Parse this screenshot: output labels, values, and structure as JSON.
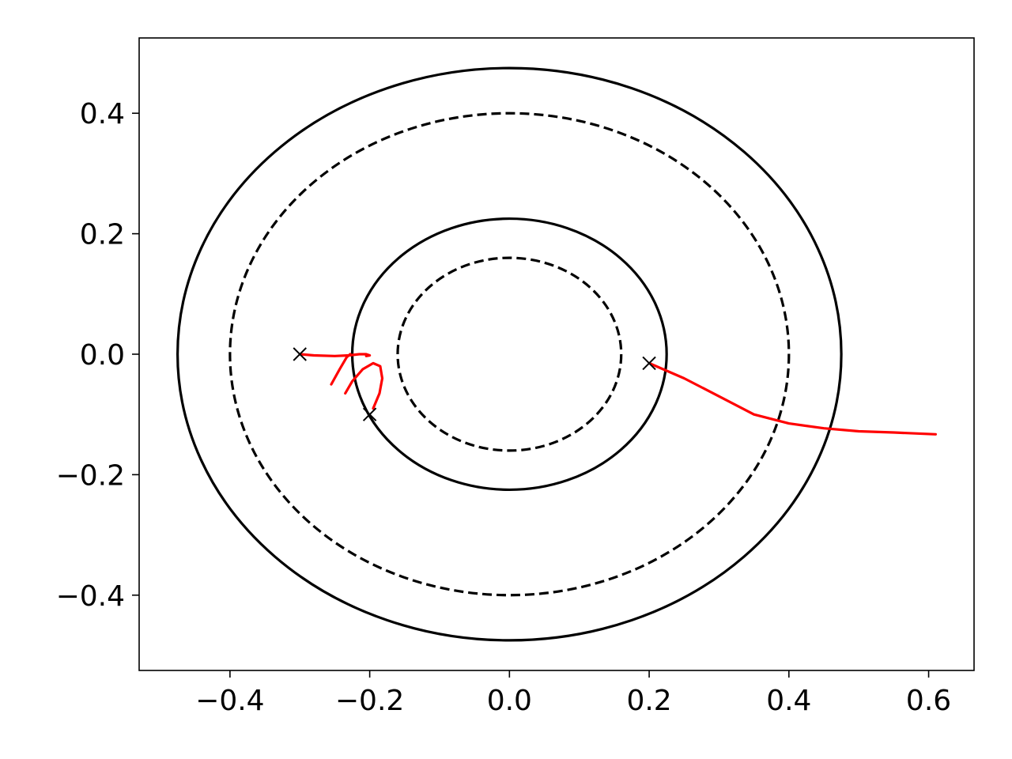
{
  "chart_data": {
    "type": "line",
    "title": "",
    "xlabel": "",
    "ylabel": "",
    "xlim": [
      -0.53,
      0.665
    ],
    "ylim": [
      -0.525,
      0.525
    ],
    "grid": false,
    "x_ticks": [
      {
        "value": -0.4,
        "label": "−0.4"
      },
      {
        "value": -0.2,
        "label": "−0.2"
      },
      {
        "value": 0.0,
        "label": "0.0"
      },
      {
        "value": 0.2,
        "label": "0.2"
      },
      {
        "value": 0.4,
        "label": "0.4"
      },
      {
        "value": 0.6,
        "label": "0.6"
      }
    ],
    "y_ticks": [
      {
        "value": 0.4,
        "label": "0.4"
      },
      {
        "value": 0.2,
        "label": "0.2"
      },
      {
        "value": 0.0,
        "label": "0.0"
      },
      {
        "value": -0.2,
        "label": "−0.2"
      },
      {
        "value": -0.4,
        "label": "−0.4"
      }
    ],
    "circles": [
      {
        "name": "outer-solid",
        "cx": 0,
        "cy": 0,
        "rx": 0.475,
        "ry": 0.475,
        "style": "solid",
        "color": "#000000"
      },
      {
        "name": "outer-dashed",
        "cx": 0,
        "cy": 0,
        "rx": 0.4,
        "ry": 0.4,
        "style": "dashed",
        "color": "#000000"
      },
      {
        "name": "inner-solid",
        "cx": 0,
        "cy": 0,
        "rx": 0.225,
        "ry": 0.225,
        "style": "solid",
        "color": "#000000"
      },
      {
        "name": "inner-dashed",
        "cx": 0,
        "cy": 0,
        "rx": 0.16,
        "ry": 0.16,
        "style": "dashed",
        "color": "#000000"
      }
    ],
    "markers": [
      {
        "x": -0.3,
        "y": 0.0
      },
      {
        "x": -0.2,
        "y": -0.1
      },
      {
        "x": 0.2,
        "y": -0.015
      }
    ],
    "series": [
      {
        "color": "#ff0000",
        "x": [
          -0.3,
          -0.28,
          -0.25,
          -0.23,
          -0.215,
          -0.205,
          -0.2,
          -0.205
        ],
        "y": [
          0.0,
          -0.002,
          -0.003,
          -0.002,
          0.0,
          0.0,
          -0.002,
          -0.003
        ]
      },
      {
        "color": "#ff0000",
        "x": [
          -0.255,
          -0.243,
          -0.233,
          -0.228
        ],
        "y": [
          -0.05,
          -0.025,
          -0.005,
          0.0
        ]
      },
      {
        "color": "#ff0000",
        "x": [
          -0.235,
          -0.225,
          -0.21,
          -0.195,
          -0.185,
          -0.182,
          -0.186,
          -0.195
        ],
        "y": [
          -0.065,
          -0.045,
          -0.025,
          -0.015,
          -0.02,
          -0.04,
          -0.065,
          -0.09
        ]
      },
      {
        "color": "#ff0000",
        "x": [
          0.2,
          0.25,
          0.3,
          0.35,
          0.4,
          0.45,
          0.5,
          0.55,
          0.61
        ],
        "y": [
          -0.015,
          -0.04,
          -0.07,
          -0.1,
          -0.115,
          -0.123,
          -0.128,
          -0.13,
          -0.133
        ]
      }
    ]
  }
}
